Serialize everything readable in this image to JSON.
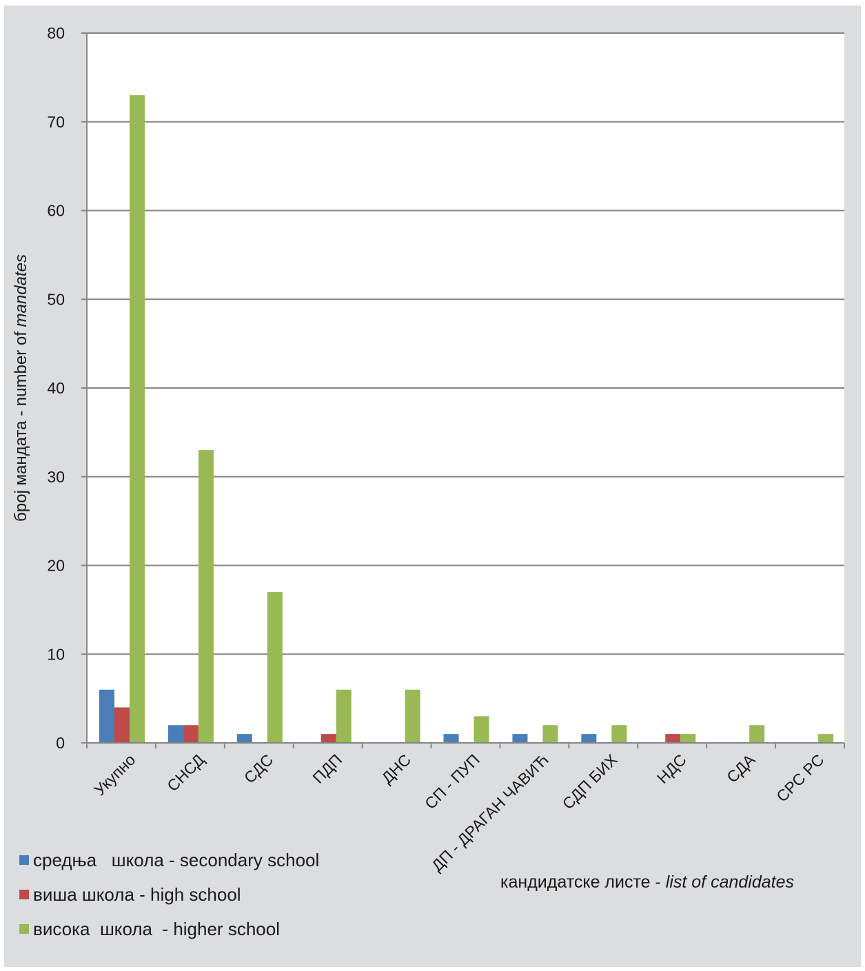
{
  "chart_data": {
    "type": "bar",
    "ylabel_plain": "број мандата - number of ",
    "ylabel_italic": "mandates",
    "xlabel_plain": "кандидатске листе - ",
    "xlabel_italic": "list of candidates",
    "ylim": [
      0,
      80
    ],
    "yticks": [
      "0",
      "10",
      "20",
      "30",
      "40",
      "50",
      "60",
      "70",
      "80"
    ],
    "grid": true,
    "legend_position": "bottom-left",
    "categories": [
      "Укупно",
      "СНСД",
      "СДС",
      "ПДП",
      "ДНС",
      "СП - ПУП",
      "ДП - ДРАГАН ЧАВИЋ",
      "СДП БИХ",
      "НДС",
      "СДА",
      "СРС РС"
    ],
    "series": [
      {
        "name": "средња   школа - secondary school",
        "color": "#4a7ebb",
        "values": [
          6,
          2,
          1,
          0,
          0,
          1,
          1,
          1,
          0,
          0,
          0
        ]
      },
      {
        "name": "виша школа - high school",
        "color": "#be4b48",
        "values": [
          4,
          2,
          0,
          1,
          0,
          0,
          0,
          0,
          1,
          0,
          0
        ]
      },
      {
        "name": "висока  школа  - higher school",
        "color": "#98b954",
        "values": [
          73,
          33,
          17,
          6,
          6,
          3,
          2,
          2,
          1,
          2,
          1
        ]
      }
    ]
  }
}
